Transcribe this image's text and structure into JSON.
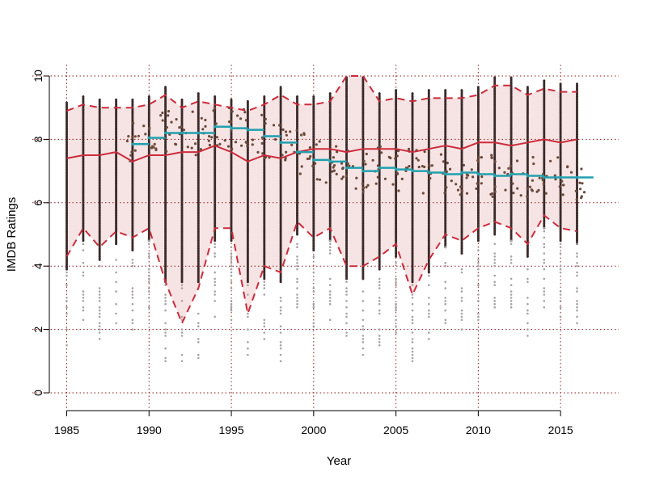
{
  "chart_data": {
    "type": "scatter",
    "title": "",
    "xlabel": "Year",
    "ylabel": "IMDB Ratings",
    "xlim": [
      1985,
      2016
    ],
    "ylim": [
      0,
      10
    ],
    "x_ticks": [
      "1985",
      "1990",
      "1995",
      "2000",
      "2005",
      "2010",
      "2015"
    ],
    "y_ticks": [
      "0",
      "2",
      "4",
      "6",
      "8",
      "10"
    ],
    "grid": "dotted",
    "years": [
      1985,
      1986,
      1987,
      1988,
      1989,
      1990,
      1991,
      1992,
      1993,
      1994,
      1995,
      1996,
      1997,
      1998,
      1999,
      2000,
      2001,
      2002,
      2003,
      2004,
      2005,
      2006,
      2007,
      2008,
      2009,
      2010,
      2011,
      2012,
      2013,
      2014,
      2015,
      2016
    ],
    "series": [
      {
        "role": "band_upper",
        "values": [
          8.9,
          9.1,
          9.0,
          9.0,
          9.0,
          9.1,
          9.4,
          9.0,
          9.2,
          9.1,
          9.0,
          8.9,
          9.1,
          9.4,
          9.1,
          9.1,
          9.2,
          10.0,
          10.0,
          9.2,
          9.3,
          9.2,
          9.3,
          9.3,
          9.3,
          9.4,
          9.7,
          9.7,
          9.4,
          9.6,
          9.5,
          9.5
        ]
      },
      {
        "role": "center_line",
        "values": [
          7.4,
          7.5,
          7.5,
          7.6,
          7.3,
          7.5,
          7.5,
          7.6,
          7.6,
          7.8,
          7.6,
          7.3,
          7.5,
          7.4,
          7.6,
          7.7,
          7.7,
          7.6,
          7.7,
          7.7,
          7.7,
          7.6,
          7.7,
          7.8,
          7.7,
          7.9,
          7.9,
          7.8,
          7.9,
          8.0,
          7.9,
          8.0
        ]
      },
      {
        "role": "band_lower",
        "values": [
          4.3,
          5.2,
          4.6,
          5.1,
          4.9,
          5.2,
          3.5,
          2.2,
          3.3,
          5.2,
          5.2,
          2.5,
          4.0,
          3.8,
          5.4,
          4.9,
          5.2,
          4.0,
          4.0,
          4.3,
          4.7,
          3.1,
          4.2,
          5.0,
          4.8,
          5.2,
          5.4,
          5.2,
          4.7,
          5.6,
          5.2,
          5.1
        ]
      },
      {
        "role": "yearly_average",
        "values": [
          null,
          null,
          null,
          null,
          7.85,
          8.05,
          8.2,
          8.2,
          8.2,
          8.4,
          8.35,
          8.3,
          8.1,
          7.9,
          7.6,
          7.35,
          7.3,
          7.1,
          7.0,
          7.1,
          7.05,
          7.0,
          6.95,
          6.9,
          6.95,
          6.9,
          6.85,
          6.9,
          6.85,
          6.8,
          6.8,
          6.8
        ]
      }
    ],
    "colors": {
      "band_fill": "#f6e4e4",
      "band_line": "#cc2b3b",
      "center_line": "#cc2b3b",
      "average": "#21a0ae",
      "grid": "#8b1a1a",
      "points": "#3b2a2a",
      "points_light": "#a9a3a3",
      "points_scatter": "#6b4a3a"
    }
  }
}
